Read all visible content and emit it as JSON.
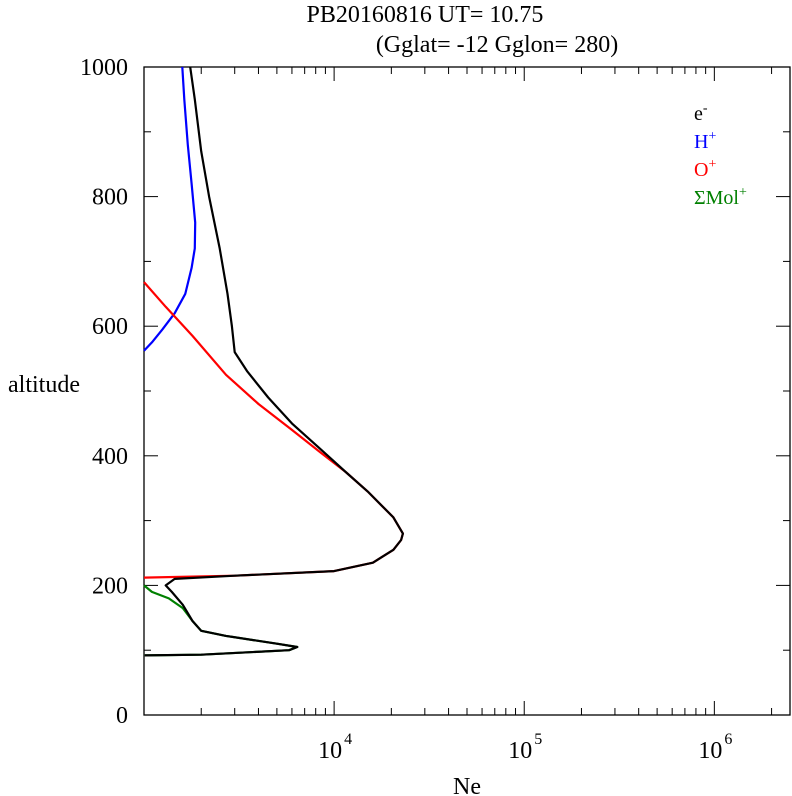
{
  "chart_data": {
    "type": "line",
    "title": "PB20160816   UT=  10.75",
    "subtitle": "(Gglat= -12   Gglon=  280)",
    "xlabel": "Ne",
    "ylabel": "altitude",
    "x_scale": "log",
    "xlim": [
      1000,
      2500000
    ],
    "ylim": [
      0,
      1000
    ],
    "x_ticks": [
      {
        "value": 10000,
        "base": "10",
        "exp": "4"
      },
      {
        "value": 100000,
        "base": "10",
        "exp": "5"
      },
      {
        "value": 1000000,
        "base": "10",
        "exp": "6"
      }
    ],
    "y_ticks": [
      {
        "value": 0,
        "label": "0"
      },
      {
        "value": 200,
        "label": "200"
      },
      {
        "value": 400,
        "label": "400"
      },
      {
        "value": 600,
        "label": "600"
      },
      {
        "value": 800,
        "label": "800"
      },
      {
        "value": 1000,
        "label": "1000"
      }
    ],
    "legend_position": "top-right",
    "series": [
      {
        "name": "e-",
        "name_base": "e",
        "name_sup": "-",
        "color": "#000000",
        "points": [
          [
            1010,
            92
          ],
          [
            2000,
            93
          ],
          [
            5800,
            100
          ],
          [
            6400,
            105
          ],
          [
            5000,
            110
          ],
          [
            2700,
            122
          ],
          [
            2000,
            130
          ],
          [
            1800,
            145
          ],
          [
            1600,
            170
          ],
          [
            1400,
            190
          ],
          [
            1300,
            200
          ],
          [
            1450,
            210
          ],
          [
            3000,
            215
          ],
          [
            10000,
            222
          ],
          [
            16000,
            235
          ],
          [
            20500,
            255
          ],
          [
            22500,
            270
          ],
          [
            23000,
            280
          ],
          [
            20500,
            305
          ],
          [
            15000,
            345
          ],
          [
            11500,
            375
          ],
          [
            8500,
            410
          ],
          [
            6000,
            450
          ],
          [
            4500,
            490
          ],
          [
            3500,
            530
          ],
          [
            3000,
            560
          ],
          [
            2900,
            600
          ],
          [
            2750,
            650
          ],
          [
            2500,
            720
          ],
          [
            2200,
            800
          ],
          [
            2000,
            870
          ],
          [
            1850,
            950
          ],
          [
            1750,
            1000
          ]
        ]
      },
      {
        "name": "H+",
        "name_base": "H",
        "name_sup": "+",
        "color": "#0000ff",
        "points": [
          [
            1000,
            562
          ],
          [
            1100,
            575
          ],
          [
            1250,
            595
          ],
          [
            1450,
            620
          ],
          [
            1650,
            650
          ],
          [
            1780,
            690
          ],
          [
            1850,
            720
          ],
          [
            1860,
            760
          ],
          [
            1780,
            820
          ],
          [
            1700,
            880
          ],
          [
            1630,
            950
          ],
          [
            1590,
            1000
          ]
        ]
      },
      {
        "name": "O+",
        "name_base": "O",
        "name_sup": "+",
        "color": "#ff0000",
        "points": [
          [
            1000,
            212
          ],
          [
            3000,
            215
          ],
          [
            10000,
            222
          ],
          [
            16000,
            235
          ],
          [
            20500,
            255
          ],
          [
            22500,
            270
          ],
          [
            23000,
            280
          ],
          [
            20500,
            305
          ],
          [
            15000,
            345
          ],
          [
            11500,
            375
          ],
          [
            8500,
            405
          ],
          [
            6000,
            440
          ],
          [
            4000,
            480
          ],
          [
            2700,
            525
          ],
          [
            1800,
            585
          ],
          [
            1300,
            630
          ],
          [
            1000,
            668
          ]
        ]
      },
      {
        "name": "ΣMol+",
        "name_base": "ΣMol",
        "name_sup": "+",
        "color": "#008000",
        "points": [
          [
            1000,
            200
          ],
          [
            1100,
            190
          ],
          [
            1350,
            180
          ],
          [
            1600,
            165
          ],
          [
            1800,
            145
          ],
          [
            2000,
            130
          ],
          [
            2700,
            122
          ],
          [
            5000,
            110
          ],
          [
            6400,
            105
          ],
          [
            5800,
            100
          ],
          [
            2000,
            93
          ],
          [
            1010,
            92
          ]
        ]
      }
    ]
  }
}
